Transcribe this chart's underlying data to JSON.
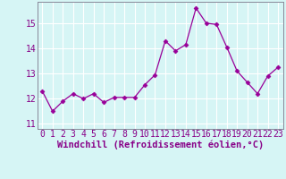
{
  "x": [
    0,
    1,
    2,
    3,
    4,
    5,
    6,
    7,
    8,
    9,
    10,
    11,
    12,
    13,
    14,
    15,
    16,
    17,
    18,
    19,
    20,
    21,
    22,
    23
  ],
  "y": [
    12.3,
    11.5,
    11.9,
    12.2,
    12.0,
    12.2,
    11.85,
    12.05,
    12.05,
    12.05,
    12.55,
    12.95,
    14.3,
    13.9,
    14.15,
    15.6,
    15.0,
    14.95,
    14.05,
    13.1,
    12.65,
    12.2,
    12.9,
    13.25
  ],
  "line_color": "#990099",
  "marker": "D",
  "marker_size": 2.5,
  "bg_color": "#d6f5f5",
  "grid_color": "#aadddd",
  "xlabel": "Windchill (Refroidissement éolien,°C)",
  "ylim": [
    10.8,
    15.85
  ],
  "yticks": [
    11,
    12,
    13,
    14,
    15
  ],
  "xticks": [
    0,
    1,
    2,
    3,
    4,
    5,
    6,
    7,
    8,
    9,
    10,
    11,
    12,
    13,
    14,
    15,
    16,
    17,
    18,
    19,
    20,
    21,
    22,
    23
  ],
  "label_fontsize": 7.5,
  "tick_fontsize": 7.0,
  "spine_color": "#888899",
  "text_color": "#880088"
}
